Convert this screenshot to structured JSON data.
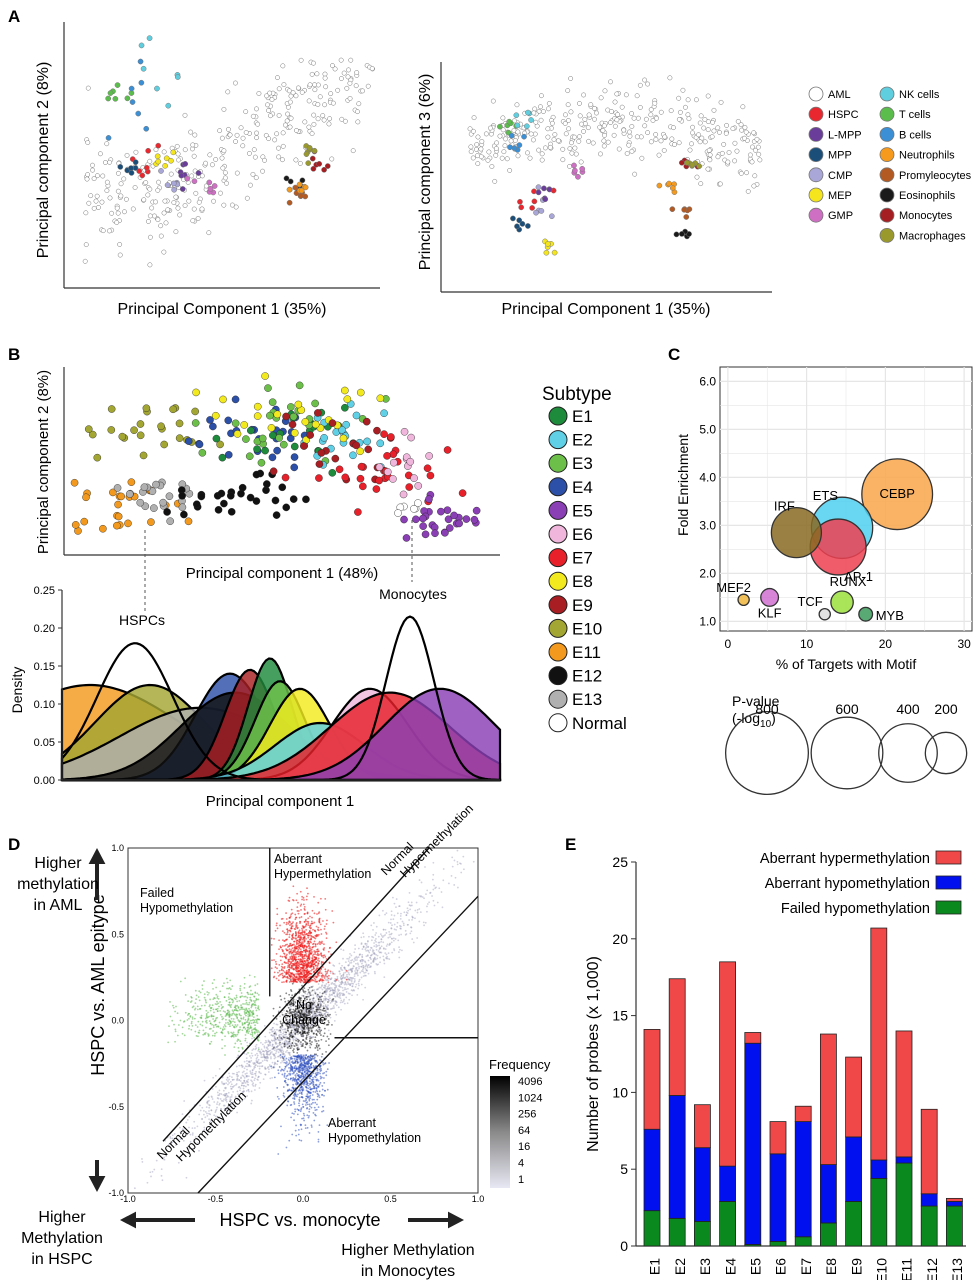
{
  "panel_labels": [
    "A",
    "B",
    "C",
    "D",
    "E"
  ],
  "panelA": {
    "pc1_label": "Principal Component 1 (35%)",
    "pc2_label": "Principal component 2 (8%)",
    "pc3_label": "Principal component 3 (6%)",
    "legend": [
      {
        "name": "AML",
        "color": "#ffffff"
      },
      {
        "name": "HSPC",
        "color": "#e8282e"
      },
      {
        "name": "L-MPP",
        "color": "#6a3d9a"
      },
      {
        "name": "MPP",
        "color": "#1b4f7a"
      },
      {
        "name": "CMP",
        "color": "#a9a6d8"
      },
      {
        "name": "MEP",
        "color": "#f4e51c"
      },
      {
        "name": "GMP",
        "color": "#cf6fc4"
      },
      {
        "name": "NK cells",
        "color": "#5fcfe0"
      },
      {
        "name": "T cells",
        "color": "#5bbd4b"
      },
      {
        "name": "B cells",
        "color": "#3b8fd4"
      },
      {
        "name": "Neutrophils",
        "color": "#f59a1c"
      },
      {
        "name": "Promyleocytes",
        "color": "#b35a22"
      },
      {
        "name": "Eosinophils",
        "color": "#1a1a1a"
      },
      {
        "name": "Monocytes",
        "color": "#a41e22"
      },
      {
        "name": "Macrophages",
        "color": "#9a9a2c"
      }
    ]
  },
  "panelB": {
    "xlabel_scatter": "Principal component 1 (48%)",
    "ylabel_scatter": "Principal component 2 (8%)",
    "density_ylabel": "Density",
    "density_xlabel": "Principal component 1",
    "density_yticks": [
      "0.25",
      "0.20",
      "0.15",
      "0.10",
      "0.05",
      "0.00"
    ],
    "annot_hspc": "HSPCs",
    "annot_mono": "Monocytes",
    "legend_title": "Subtype",
    "subtypes": [
      {
        "name": "E1",
        "color": "#1e8a3c"
      },
      {
        "name": "E2",
        "color": "#5fd0e6"
      },
      {
        "name": "E3",
        "color": "#6cc04a"
      },
      {
        "name": "E4",
        "color": "#2c4fa8"
      },
      {
        "name": "E5",
        "color": "#8a3fb4"
      },
      {
        "name": "E6",
        "color": "#f0b6dc"
      },
      {
        "name": "E7",
        "color": "#e8202a"
      },
      {
        "name": "E8",
        "color": "#f2ea1e"
      },
      {
        "name": "E9",
        "color": "#a81e22"
      },
      {
        "name": "E10",
        "color": "#a3a632"
      },
      {
        "name": "E11",
        "color": "#f39a1e"
      },
      {
        "name": "E12",
        "color": "#111111"
      },
      {
        "name": "E13",
        "color": "#b0b0b0"
      },
      {
        "name": "Normal",
        "color": "#ffffff"
      }
    ]
  },
  "chart_data": [
    {
      "type": "scatter",
      "title": "",
      "xlabel": "% of Targets with Motif",
      "ylabel": "Fold Enrichment",
      "xlim": [
        -1,
        31
      ],
      "ylim": [
        0.8,
        6.3
      ],
      "xticks": [
        0,
        10,
        20,
        30
      ],
      "yticks": [
        1.0,
        2.0,
        3.0,
        4.0,
        5.0,
        6.0
      ],
      "points": [
        {
          "label": "CEBP",
          "x": 21.5,
          "y": 3.65,
          "pvalue": 800,
          "color": "#f9a64a"
        },
        {
          "label": "ETS",
          "x": 14.5,
          "y": 2.95,
          "pvalue": 600,
          "color": "#4fd0f0"
        },
        {
          "label": "AP-1",
          "x": 14.0,
          "y": 2.55,
          "pvalue": 500,
          "color": "#ee4050"
        },
        {
          "label": "IRF",
          "x": 8.7,
          "y": 2.85,
          "pvalue": 400,
          "color": "#8a6a22"
        },
        {
          "label": "RUNX",
          "x": 14.5,
          "y": 1.4,
          "pvalue": 80,
          "color": "#9be03c"
        },
        {
          "label": "MEF2",
          "x": 2.0,
          "y": 1.45,
          "pvalue": 20,
          "color": "#f0b63c"
        },
        {
          "label": "KLF",
          "x": 5.3,
          "y": 1.5,
          "pvalue": 50,
          "color": "#d070d0"
        },
        {
          "label": "TCF",
          "x": 12.3,
          "y": 1.15,
          "pvalue": 20,
          "color": "#dddddd"
        },
        {
          "label": "MYB",
          "x": 17.5,
          "y": 1.15,
          "pvalue": 30,
          "color": "#3c9a5c"
        }
      ],
      "size_legend_title": "P-value",
      "size_legend_sub": "(-log",
      "size_legend_sub_sub": "10",
      "size_legend_close": ")",
      "size_legend": [
        800,
        600,
        400,
        200
      ]
    },
    {
      "type": "heatmap",
      "title": "",
      "xlabel": "HSPC vs. monocyte",
      "ylabel": "HSPC vs. AML epitype",
      "xlim": [
        -1.0,
        1.0
      ],
      "ylim": [
        -1.0,
        1.0
      ],
      "xticks": [
        "-1.0",
        "-0.5",
        "0.0",
        "0.5",
        "1.0"
      ],
      "yticks": [
        "1.0",
        "0.5",
        "0.0",
        "-0.5",
        "-1.0"
      ],
      "regions": [
        "Aberrant\nHypermethylation",
        "Normal\nHypermethylation",
        "Failed\nHypomethylation",
        "No\nChange",
        "Normal\nHypomethylation",
        "Aberrant\nHypomethylation"
      ],
      "colorbar_title": "Frequency",
      "colorbar_ticks": [
        "4096",
        "1024",
        "256",
        "64",
        "16",
        "4",
        "1"
      ],
      "arrow_up": [
        "Higher",
        "methylation",
        "in AML"
      ],
      "arrow_left": [
        "Higher",
        "Methylation",
        "in HSPC"
      ],
      "arrow_right": [
        "Higher Methylation",
        "in Monocytes"
      ]
    },
    {
      "type": "bar",
      "title": "",
      "xlabel": "",
      "ylabel": "Number of probes (x 1,000)",
      "ylim": [
        0,
        25
      ],
      "yticks": [
        0,
        5,
        10,
        15,
        20,
        25
      ],
      "categories": [
        "E1",
        "E2",
        "E3",
        "E4",
        "E5",
        "E6",
        "E7",
        "E8",
        "E9",
        "E10",
        "E11",
        "E12",
        "E13"
      ],
      "series": [
        {
          "name": "Failed  hypomethylation",
          "color": "#0a8a1e",
          "values": [
            2.3,
            1.8,
            1.6,
            2.9,
            0.1,
            0.3,
            0.6,
            1.5,
            2.9,
            4.4,
            5.4,
            2.6,
            2.6
          ]
        },
        {
          "name": "Aberrant hypomethylation",
          "color": "#0010ee",
          "values": [
            5.3,
            8.0,
            4.8,
            2.3,
            13.1,
            5.7,
            7.5,
            3.8,
            4.2,
            1.2,
            0.4,
            0.8,
            0.3
          ]
        },
        {
          "name": "Aberrant hypermethylation",
          "color": "#f04848",
          "values": [
            6.5,
            7.6,
            2.8,
            13.3,
            0.7,
            2.1,
            1.0,
            8.5,
            5.2,
            15.1,
            8.2,
            5.5,
            0.2
          ]
        }
      ]
    }
  ]
}
